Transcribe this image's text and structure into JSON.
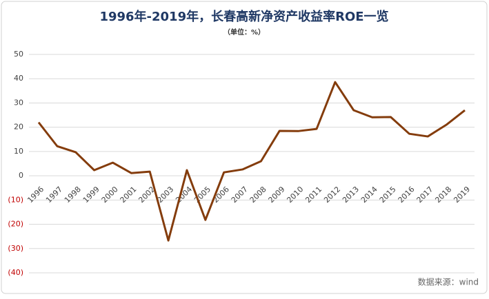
{
  "chart_data": {
    "type": "line",
    "title": "1996年-2019年，长春高新净资产收益率ROE一览",
    "subtitle": "（单位：%）",
    "source": "数据来源：wind",
    "categories": [
      "1996",
      "1997",
      "1998",
      "1999",
      "2000",
      "2001",
      "2002",
      "2003",
      "2004",
      "2005",
      "2006",
      "2007",
      "2008",
      "2009",
      "2010",
      "2011",
      "2012",
      "2013",
      "2014",
      "2015",
      "2016",
      "2017",
      "2018",
      "2019"
    ],
    "series": [
      {
        "name": "ROE",
        "color": "#843c0c",
        "values": [
          22,
          12.2,
          9.7,
          2.3,
          5.4,
          1.1,
          1.7,
          -26.7,
          2.3,
          -18.2,
          1.4,
          2.6,
          6,
          18.5,
          18.4,
          19.3,
          38.6,
          27,
          24.1,
          24.2,
          17.3,
          16.2,
          21,
          27
        ]
      }
    ],
    "ylim": [
      -40,
      50
    ],
    "yticks": [
      {
        "value": -40,
        "label": "(40)"
      },
      {
        "value": -30,
        "label": "(30)"
      },
      {
        "value": -20,
        "label": "(20)"
      },
      {
        "value": -10,
        "label": "(10)"
      },
      0,
      10,
      20,
      30,
      40,
      50
    ],
    "negative_tick_color": "#c00000",
    "grid": true
  }
}
